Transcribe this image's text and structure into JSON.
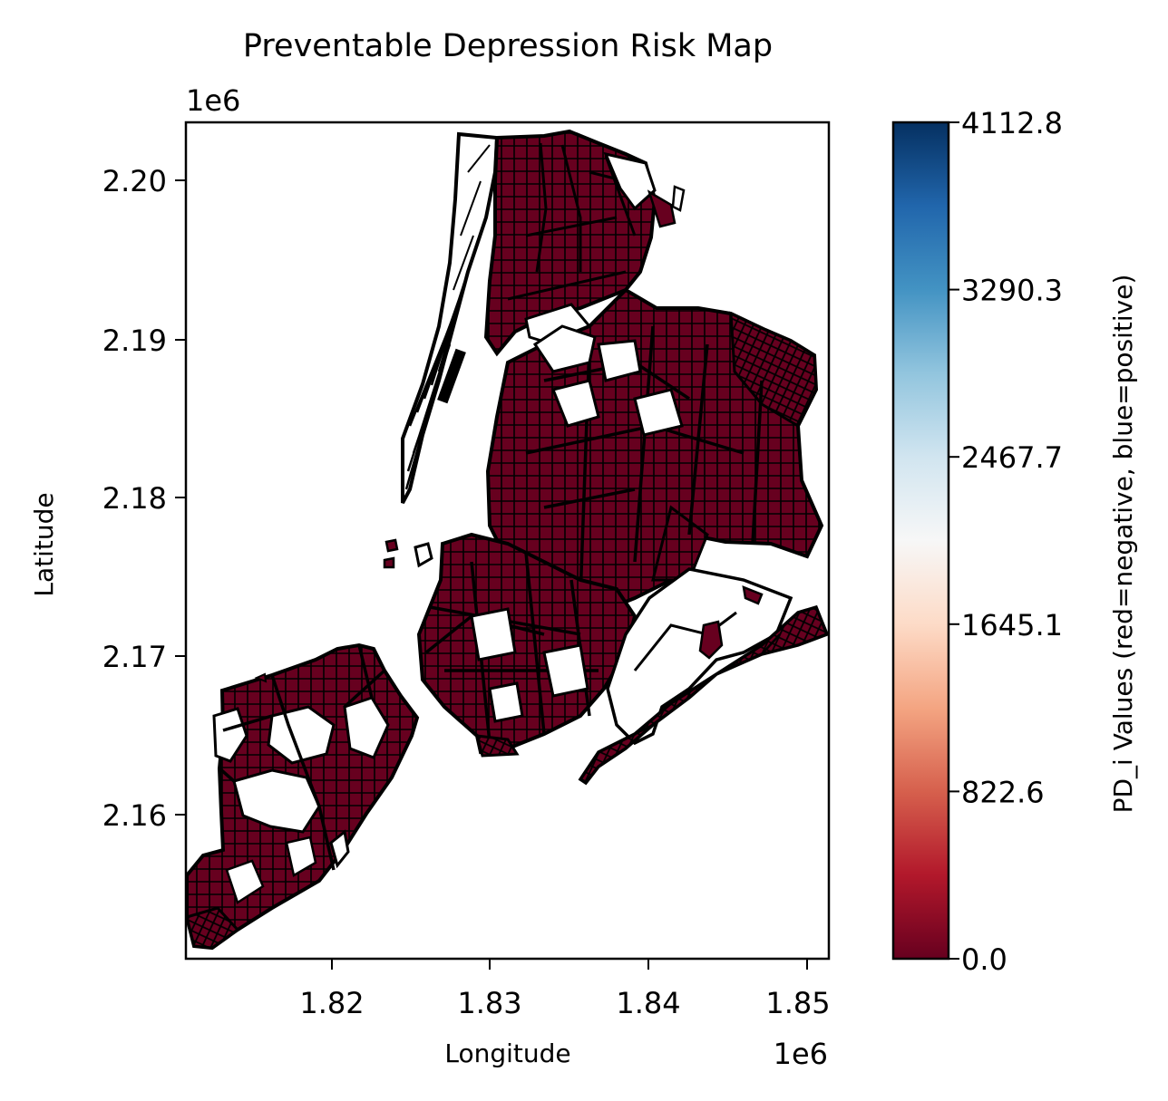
{
  "figure": {
    "title": "Preventable Depression Risk Map",
    "xlabel": "Longitude",
    "ylabel": "Latitude",
    "x_offset_label": "1e6",
    "y_offset_label": "1e6",
    "x_ticks": [
      "1.82",
      "1.83",
      "1.84",
      "1.85"
    ],
    "y_ticks": [
      "2.20",
      "2.19",
      "2.18",
      "2.17",
      "2.16"
    ]
  },
  "map": {
    "fill_color": "#67001f",
    "edge_color": "#000000",
    "background": "#ffffff"
  },
  "colorbar": {
    "label": "PD_i Values (red=negative, blue=positive)",
    "colormap": "RdBu",
    "min": 0.0,
    "max": 4112.8,
    "tick_labels": [
      "0.0",
      "822.6",
      "1645.1",
      "2467.7",
      "3290.3",
      "4112.8"
    ],
    "colors": [
      "#67001f",
      "#b2182b",
      "#d6604d",
      "#f4a582",
      "#fddbc7",
      "#f7f7f7",
      "#d1e5f0",
      "#92c5de",
      "#4393c3",
      "#2166ac",
      "#053061"
    ]
  }
}
